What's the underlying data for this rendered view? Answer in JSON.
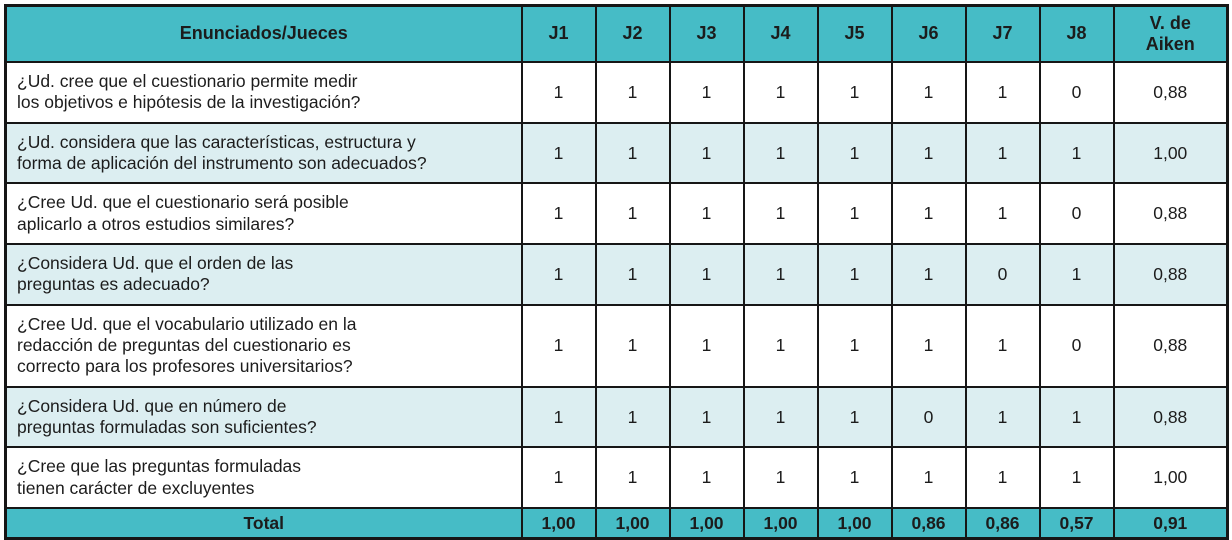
{
  "colors": {
    "header_bg": "#46BCC6",
    "shaded_row_bg": "#DCEEF1",
    "plain_row_bg": "#FFFFFF",
    "border": "#161616",
    "text": "#1C1C1C"
  },
  "table": {
    "header": {
      "enunciados_label": "Enunciados/Jueces",
      "judges": [
        "J1",
        "J2",
        "J3",
        "J4",
        "J5",
        "J6",
        "J7",
        "J8"
      ],
      "aiken_label": "V. de\nAiken"
    },
    "rows": [
      {
        "enunciado": "¿Ud. cree que el cuestionario permite medir\nlos objetivos e hipótesis de la investigación?",
        "scores": [
          "1",
          "1",
          "1",
          "1",
          "1",
          "1",
          "1",
          "0"
        ],
        "aiken": "0,88"
      },
      {
        "enunciado": "¿Ud. considera que las características, estructura y\nforma de aplicación del instrumento son adecuados?",
        "scores": [
          "1",
          "1",
          "1",
          "1",
          "1",
          "1",
          "1",
          "1"
        ],
        "aiken": "1,00"
      },
      {
        "enunciado": "¿Cree Ud. que el cuestionario será posible\naplicarlo a otros estudios similares?",
        "scores": [
          "1",
          "1",
          "1",
          "1",
          "1",
          "1",
          "1",
          "0"
        ],
        "aiken": "0,88"
      },
      {
        "enunciado": "¿Considera Ud. que el orden de las\npreguntas es adecuado?",
        "scores": [
          "1",
          "1",
          "1",
          "1",
          "1",
          "1",
          "0",
          "1"
        ],
        "aiken": "0,88"
      },
      {
        "enunciado": "¿Cree Ud. que el vocabulario utilizado en la\nredacción de preguntas del cuestionario es\ncorrecto para los profesores universitarios?",
        "scores": [
          "1",
          "1",
          "1",
          "1",
          "1",
          "1",
          "1",
          "0"
        ],
        "aiken": "0,88"
      },
      {
        "enunciado": "¿Considera Ud. que en número de\npreguntas formuladas son suficientes?",
        "scores": [
          "1",
          "1",
          "1",
          "1",
          "1",
          "0",
          "1",
          "1"
        ],
        "aiken": "0,88"
      },
      {
        "enunciado": "¿Cree que las preguntas formuladas\ntienen carácter de excluyentes",
        "scores": [
          "1",
          "1",
          "1",
          "1",
          "1",
          "1",
          "1",
          "1"
        ],
        "aiken": "1,00"
      }
    ],
    "total": {
      "label": "Total",
      "scores": [
        "1,00",
        "1,00",
        "1,00",
        "1,00",
        "1,00",
        "0,86",
        "0,86",
        "0,57"
      ],
      "aiken": "0,91"
    }
  }
}
